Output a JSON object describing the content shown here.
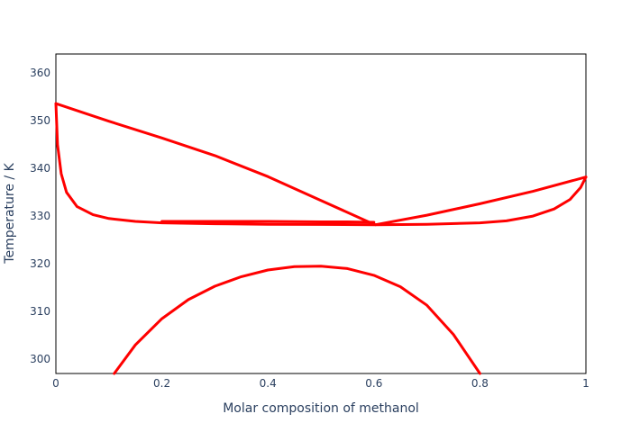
{
  "chart_data": {
    "type": "line",
    "xlabel": "Molar composition of methanol",
    "ylabel": "Temperature / K",
    "xlim": [
      0,
      1
    ],
    "ylim": [
      297,
      364
    ],
    "x_ticks": [
      0,
      0.2,
      0.4,
      0.6,
      0.8,
      1
    ],
    "x_tick_labels": [
      "0",
      "0.2",
      "0.4",
      "0.6",
      "0.8",
      "1"
    ],
    "y_ticks": [
      300,
      310,
      320,
      330,
      340,
      350,
      360
    ],
    "y_tick_labels": [
      "300",
      "310",
      "320",
      "330",
      "340",
      "350",
      "360"
    ],
    "grid": false,
    "legend": "none",
    "color": "#ff0000",
    "series": [
      {
        "x": [
          0,
          0.1,
          0.2,
          0.3,
          0.4,
          0.5,
          0.6,
          0.603,
          0.7,
          0.8,
          0.9,
          1.0
        ],
        "y": [
          353.6,
          349.9,
          346.4,
          342.7,
          338.3,
          333.3,
          328.3,
          328.2,
          330.2,
          332.6,
          335.2,
          338.2
        ]
      },
      {
        "x": [
          0,
          0.003,
          0.01,
          0.02,
          0.04,
          0.07,
          0.1,
          0.15,
          0.2,
          0.3,
          0.4,
          0.5,
          0.6,
          0.603,
          0.7,
          0.8,
          0.85,
          0.9,
          0.94,
          0.97,
          0.99,
          1.0
        ],
        "y": [
          353.6,
          345.0,
          338.9,
          335.0,
          332.0,
          330.3,
          329.5,
          328.9,
          328.6,
          328.4,
          328.3,
          328.25,
          328.2,
          328.2,
          328.3,
          328.6,
          329.0,
          330.0,
          331.5,
          333.5,
          336.0,
          338.2
        ]
      },
      {
        "x": [
          0.2,
          0.3,
          0.4,
          0.5,
          0.55,
          0.6
        ],
        "y": [
          328.9,
          328.9,
          328.9,
          328.8,
          328.8,
          328.7
        ]
      },
      {
        "x": [
          0.11,
          0.15,
          0.2,
          0.25,
          0.3,
          0.35,
          0.4,
          0.45,
          0.5,
          0.55,
          0.6,
          0.65,
          0.7,
          0.75,
          0.8
        ],
        "y": [
          297.0,
          303.0,
          308.5,
          312.5,
          315.3,
          317.3,
          318.7,
          319.4,
          319.5,
          319.0,
          317.6,
          315.2,
          311.3,
          305.2,
          297.0
        ]
      }
    ]
  }
}
